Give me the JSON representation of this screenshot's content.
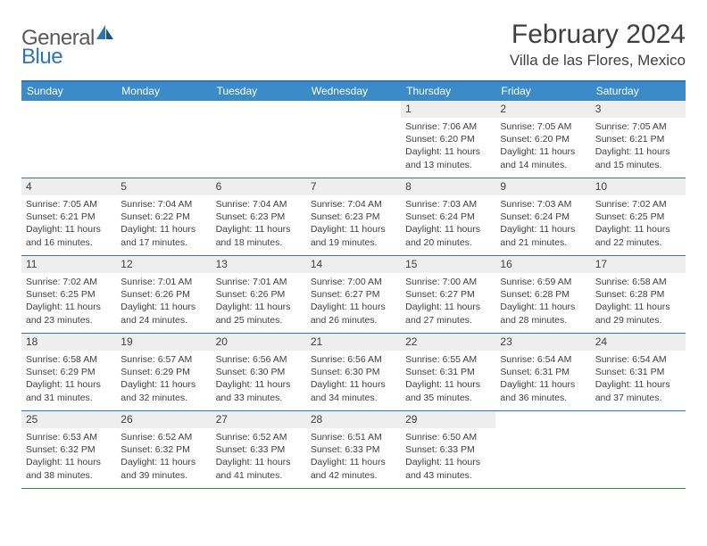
{
  "brand": {
    "general": "General",
    "blue": "Blue",
    "accent": "#2e75b6"
  },
  "title": "February 2024",
  "location": "Villa de las Flores, Mexico",
  "colors": {
    "header_bar": "#3b8bc9",
    "border": "#2e75b6",
    "daynum_bg": "#eeeeee",
    "text": "#404040",
    "white": "#ffffff"
  },
  "dow": [
    "Sunday",
    "Monday",
    "Tuesday",
    "Wednesday",
    "Thursday",
    "Friday",
    "Saturday"
  ],
  "weeks": [
    [
      null,
      null,
      null,
      null,
      {
        "n": "1",
        "sr": "7:06 AM",
        "ss": "6:20 PM",
        "dl": "11 hours and 13 minutes."
      },
      {
        "n": "2",
        "sr": "7:05 AM",
        "ss": "6:20 PM",
        "dl": "11 hours and 14 minutes."
      },
      {
        "n": "3",
        "sr": "7:05 AM",
        "ss": "6:21 PM",
        "dl": "11 hours and 15 minutes."
      }
    ],
    [
      {
        "n": "4",
        "sr": "7:05 AM",
        "ss": "6:21 PM",
        "dl": "11 hours and 16 minutes."
      },
      {
        "n": "5",
        "sr": "7:04 AM",
        "ss": "6:22 PM",
        "dl": "11 hours and 17 minutes."
      },
      {
        "n": "6",
        "sr": "7:04 AM",
        "ss": "6:23 PM",
        "dl": "11 hours and 18 minutes."
      },
      {
        "n": "7",
        "sr": "7:04 AM",
        "ss": "6:23 PM",
        "dl": "11 hours and 19 minutes."
      },
      {
        "n": "8",
        "sr": "7:03 AM",
        "ss": "6:24 PM",
        "dl": "11 hours and 20 minutes."
      },
      {
        "n": "9",
        "sr": "7:03 AM",
        "ss": "6:24 PM",
        "dl": "11 hours and 21 minutes."
      },
      {
        "n": "10",
        "sr": "7:02 AM",
        "ss": "6:25 PM",
        "dl": "11 hours and 22 minutes."
      }
    ],
    [
      {
        "n": "11",
        "sr": "7:02 AM",
        "ss": "6:25 PM",
        "dl": "11 hours and 23 minutes."
      },
      {
        "n": "12",
        "sr": "7:01 AM",
        "ss": "6:26 PM",
        "dl": "11 hours and 24 minutes."
      },
      {
        "n": "13",
        "sr": "7:01 AM",
        "ss": "6:26 PM",
        "dl": "11 hours and 25 minutes."
      },
      {
        "n": "14",
        "sr": "7:00 AM",
        "ss": "6:27 PM",
        "dl": "11 hours and 26 minutes."
      },
      {
        "n": "15",
        "sr": "7:00 AM",
        "ss": "6:27 PM",
        "dl": "11 hours and 27 minutes."
      },
      {
        "n": "16",
        "sr": "6:59 AM",
        "ss": "6:28 PM",
        "dl": "11 hours and 28 minutes."
      },
      {
        "n": "17",
        "sr": "6:58 AM",
        "ss": "6:28 PM",
        "dl": "11 hours and 29 minutes."
      }
    ],
    [
      {
        "n": "18",
        "sr": "6:58 AM",
        "ss": "6:29 PM",
        "dl": "11 hours and 31 minutes."
      },
      {
        "n": "19",
        "sr": "6:57 AM",
        "ss": "6:29 PM",
        "dl": "11 hours and 32 minutes."
      },
      {
        "n": "20",
        "sr": "6:56 AM",
        "ss": "6:30 PM",
        "dl": "11 hours and 33 minutes."
      },
      {
        "n": "21",
        "sr": "6:56 AM",
        "ss": "6:30 PM",
        "dl": "11 hours and 34 minutes."
      },
      {
        "n": "22",
        "sr": "6:55 AM",
        "ss": "6:31 PM",
        "dl": "11 hours and 35 minutes."
      },
      {
        "n": "23",
        "sr": "6:54 AM",
        "ss": "6:31 PM",
        "dl": "11 hours and 36 minutes."
      },
      {
        "n": "24",
        "sr": "6:54 AM",
        "ss": "6:31 PM",
        "dl": "11 hours and 37 minutes."
      }
    ],
    [
      {
        "n": "25",
        "sr": "6:53 AM",
        "ss": "6:32 PM",
        "dl": "11 hours and 38 minutes."
      },
      {
        "n": "26",
        "sr": "6:52 AM",
        "ss": "6:32 PM",
        "dl": "11 hours and 39 minutes."
      },
      {
        "n": "27",
        "sr": "6:52 AM",
        "ss": "6:33 PM",
        "dl": "11 hours and 41 minutes."
      },
      {
        "n": "28",
        "sr": "6:51 AM",
        "ss": "6:33 PM",
        "dl": "11 hours and 42 minutes."
      },
      {
        "n": "29",
        "sr": "6:50 AM",
        "ss": "6:33 PM",
        "dl": "11 hours and 43 minutes."
      },
      null,
      null
    ]
  ],
  "labels": {
    "sunrise": "Sunrise: ",
    "sunset": "Sunset: ",
    "daylight": "Daylight: "
  }
}
